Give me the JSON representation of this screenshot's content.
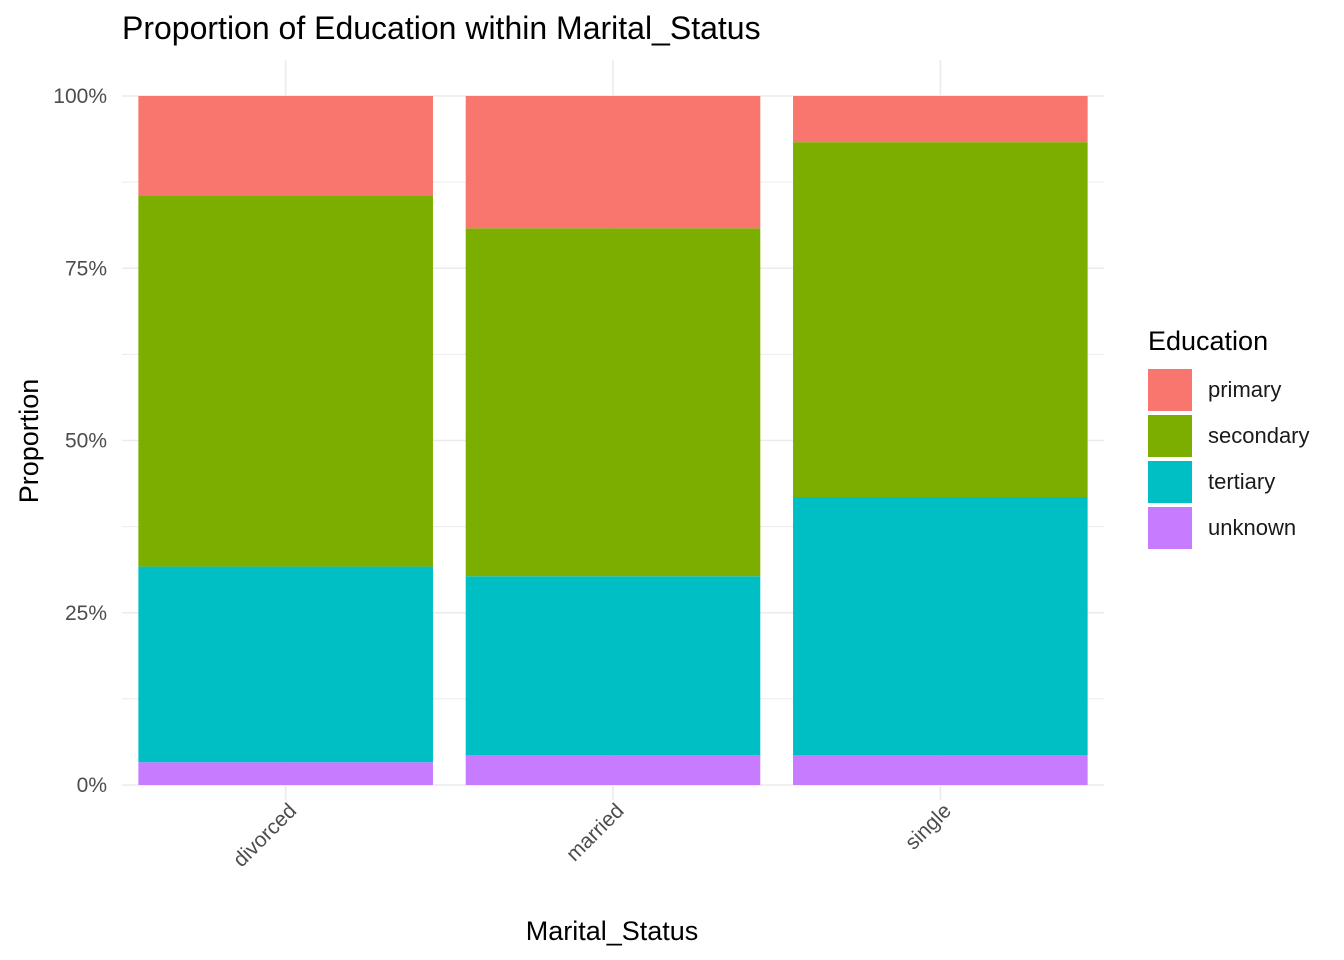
{
  "chart_data": {
    "type": "bar",
    "stacked": true,
    "title": "Proportion of Education within Marital_Status",
    "xlabel": "Marital_Status",
    "ylabel": "Proportion",
    "ylim": [
      0,
      1
    ],
    "y_ticks": [
      "0%",
      "25%",
      "50%",
      "75%",
      "100%"
    ],
    "categories": [
      "divorced",
      "married",
      "single"
    ],
    "legend": {
      "title": "Education",
      "position": "right"
    },
    "grid": true,
    "series": [
      {
        "name": "unknown",
        "color": "#C77CFF",
        "values": [
          0.033,
          0.043,
          0.043
        ]
      },
      {
        "name": "tertiary",
        "color": "#00BFC4",
        "values": [
          0.284,
          0.26,
          0.375
        ]
      },
      {
        "name": "secondary",
        "color": "#7CAE00",
        "values": [
          0.539,
          0.505,
          0.515
        ]
      },
      {
        "name": "primary",
        "color": "#F8766D",
        "values": [
          0.144,
          0.192,
          0.067
        ]
      }
    ],
    "legend_order": [
      "primary",
      "secondary",
      "tertiary",
      "unknown"
    ]
  }
}
